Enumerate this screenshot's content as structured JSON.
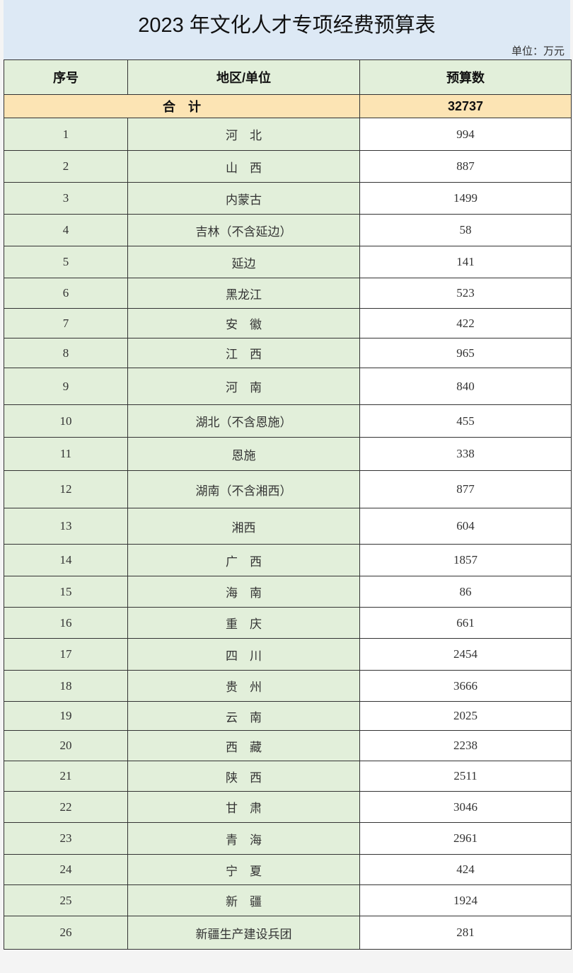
{
  "title": "2023 年文化人才专项经费预算表",
  "unit": "单位：万元",
  "colors": {
    "title_bg": "#dde9f5",
    "header_bg": "#e2efda",
    "total_bg": "#fce4b4",
    "value_bg": "#ffffff"
  },
  "headers": [
    "序号",
    "地区/单位",
    "预算数"
  ],
  "total": {
    "label": "合　计",
    "value": "32737"
  },
  "rows": [
    {
      "no": "1",
      "region": "河　北",
      "value": "994"
    },
    {
      "no": "2",
      "region": "山　西",
      "value": "887"
    },
    {
      "no": "3",
      "region": "内蒙古",
      "value": "1499"
    },
    {
      "no": "4",
      "region": "吉林（不含延边）",
      "value": "58"
    },
    {
      "no": "5",
      "region": "延边",
      "value": "141"
    },
    {
      "no": "6",
      "region": "黑龙江",
      "value": "523"
    },
    {
      "no": "7",
      "region": "安　徽",
      "value": "422"
    },
    {
      "no": "8",
      "region": "江　西",
      "value": "965"
    },
    {
      "no": "9",
      "region": "河　南",
      "value": "840"
    },
    {
      "no": "10",
      "region": "湖北（不含恩施）",
      "value": "455"
    },
    {
      "no": "11",
      "region": "恩施",
      "value": "338"
    },
    {
      "no": "12",
      "region": "湖南（不含湘西）",
      "value": "877"
    },
    {
      "no": "13",
      "region": "湘西",
      "value": "604"
    },
    {
      "no": "14",
      "region": "广　西",
      "value": "1857"
    },
    {
      "no": "15",
      "region": "海　南",
      "value": "86"
    },
    {
      "no": "16",
      "region": "重　庆",
      "value": "661"
    },
    {
      "no": "17",
      "region": "四　川",
      "value": "2454"
    },
    {
      "no": "18",
      "region": "贵　州",
      "value": "3666"
    },
    {
      "no": "19",
      "region": "云　南",
      "value": "2025"
    },
    {
      "no": "20",
      "region": "西　藏",
      "value": "2238"
    },
    {
      "no": "21",
      "region": "陕　西",
      "value": "2511"
    },
    {
      "no": "22",
      "region": "甘　肃",
      "value": "3046"
    },
    {
      "no": "23",
      "region": "青　海",
      "value": "2961"
    },
    {
      "no": "24",
      "region": "宁　夏",
      "value": "424"
    },
    {
      "no": "25",
      "region": "新　疆",
      "value": "1924"
    },
    {
      "no": "26",
      "region": "新疆生产建设兵团",
      "value": "281"
    }
  ]
}
